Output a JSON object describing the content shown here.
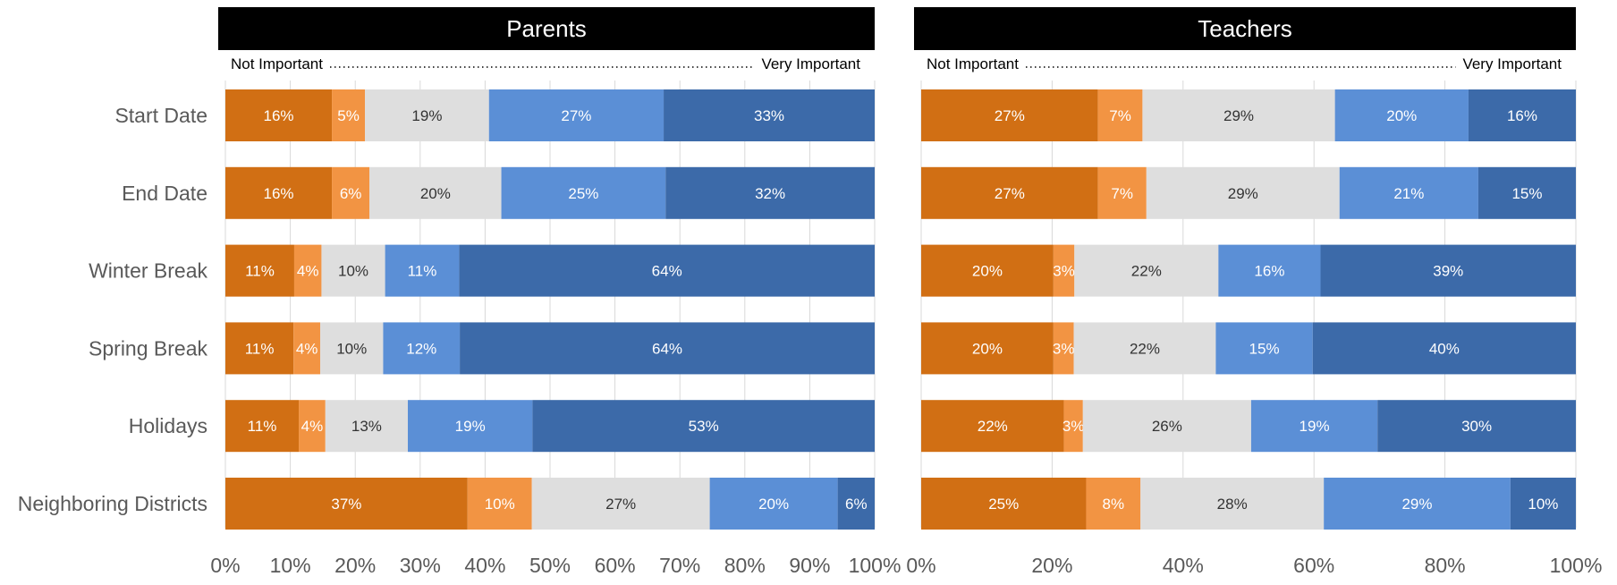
{
  "chart_data": {
    "type": "bar",
    "orientation": "horizontal",
    "stacked": "percent",
    "grid": true,
    "legend": "none",
    "categories": [
      "Start Date",
      "End Date",
      "Winter Break",
      "Spring Break",
      "Holidays",
      "Neighboring Districts"
    ],
    "series_colors": [
      "#d16f14",
      "#f29443",
      "#dedede",
      "#5b8fd6",
      "#3c6aa9"
    ],
    "label_colors": [
      "#ffffff",
      "#ffffff",
      "#333333",
      "#ffffff",
      "#ffffff"
    ],
    "scale_low_label": "Not Important",
    "scale_high_label": "Very Important",
    "panels": [
      {
        "title": "Parents",
        "xlim": [
          0,
          100
        ],
        "ticks": [
          "0%",
          "10%",
          "20%",
          "30%",
          "40%",
          "50%",
          "60%",
          "70%",
          "80%",
          "90%",
          "100%"
        ],
        "values": [
          [
            16.4,
            5.1,
            19.1,
            26.9,
            32.5
          ],
          [
            16.4,
            5.8,
            20.3,
            25.3,
            32.2
          ],
          [
            10.6,
            4.2,
            9.8,
            11.4,
            64.0
          ],
          [
            10.5,
            4.1,
            9.7,
            11.8,
            63.9
          ],
          [
            11.3,
            4.1,
            12.7,
            19.2,
            52.7
          ],
          [
            37.3,
            9.9,
            27.4,
            19.7,
            5.7
          ]
        ],
        "labels": [
          [
            "16%",
            "5%",
            "19%",
            "27%",
            "33%"
          ],
          [
            "16%",
            "6%",
            "20%",
            "25%",
            "32%"
          ],
          [
            "11%",
            "4%",
            "10%",
            "11%",
            "64%"
          ],
          [
            "11%",
            "4%",
            "10%",
            "12%",
            "64%"
          ],
          [
            "11%",
            "4%",
            "13%",
            "19%",
            "53%"
          ],
          [
            "37%",
            "10%",
            "27%",
            "20%",
            "6%"
          ]
        ]
      },
      {
        "title": "Teachers",
        "xlim": [
          0,
          100
        ],
        "ticks": [
          "0%",
          "20%",
          "40%",
          "60%",
          "80%",
          "100%"
        ],
        "values": [
          [
            27.0,
            6.8,
            29.4,
            20.4,
            16.4
          ],
          [
            27.0,
            7.4,
            29.5,
            21.2,
            14.9
          ],
          [
            20.2,
            3.2,
            22.0,
            15.6,
            39.0
          ],
          [
            20.2,
            3.1,
            21.7,
            14.8,
            40.2
          ],
          [
            21.8,
            2.9,
            25.7,
            19.3,
            30.3
          ],
          [
            25.2,
            8.3,
            28.0,
            28.5,
            10.0
          ]
        ],
        "labels": [
          [
            "27%",
            "7%",
            "29%",
            "20%",
            "16%"
          ],
          [
            "27%",
            "7%",
            "29%",
            "21%",
            "15%"
          ],
          [
            "20%",
            "3%",
            "22%",
            "16%",
            "39%"
          ],
          [
            "20%",
            "3%",
            "22%",
            "15%",
            "40%"
          ],
          [
            "22%",
            "3%",
            "26%",
            "19%",
            "30%"
          ],
          [
            "25%",
            "8%",
            "28%",
            "29%",
            "10%"
          ]
        ]
      }
    ]
  }
}
